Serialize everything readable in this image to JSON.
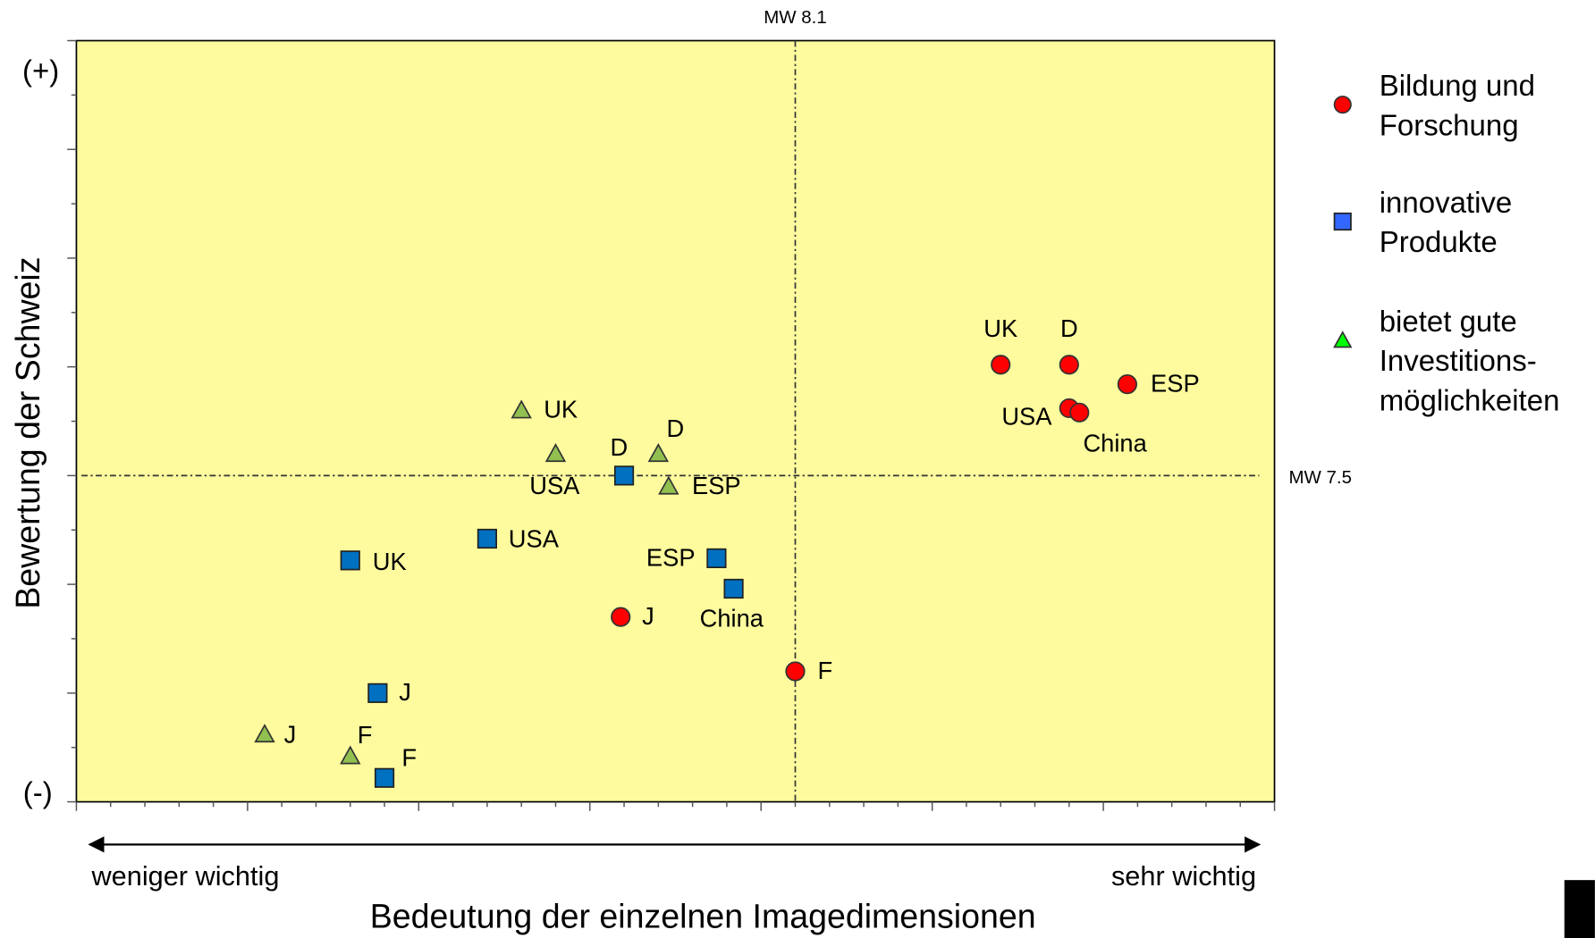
{
  "chart_data": {
    "type": "scatter",
    "xlabel": "Bedeutung der einzelnen Imagedimensionen",
    "ylabel": "Bewertung der Schweiz",
    "y_top_label": "(+)",
    "y_bottom_label": "(-)",
    "x_left_label": "weniger wichtig",
    "x_right_label": "sehr wichtig",
    "xlim": [
      6.0,
      9.5
    ],
    "ylim": [
      6.0,
      9.5
    ],
    "xticks": [
      6.0,
      6.1,
      6.2,
      6.3,
      6.4,
      6.5,
      6.6,
      6.7,
      6.8,
      6.9,
      7.0,
      7.1,
      7.2,
      7.3,
      7.4,
      7.5,
      7.6,
      7.7,
      7.8,
      7.9,
      8.0,
      8.1,
      8.2,
      8.3,
      8.4,
      8.5,
      8.6,
      8.7,
      8.8,
      8.9,
      9.0,
      9.1,
      9.2,
      9.3,
      9.4,
      9.5
    ],
    "yticks": [
      6.0,
      6.25,
      6.5,
      6.75,
      7.0,
      7.25,
      7.5,
      7.75,
      8.0,
      8.25,
      8.5,
      8.75,
      9.0,
      9.25,
      9.5
    ],
    "reference_lines": [
      {
        "axis": "x",
        "value": 8.1,
        "label": "MW 8.1"
      },
      {
        "axis": "y",
        "value": 7.5,
        "label": "MW 7.5"
      }
    ],
    "background": "#fdfb9e",
    "series": [
      {
        "name": "Bildung und Forschung",
        "color": "#ff0000",
        "marker": "circle",
        "labels": [
          "UK",
          "D",
          "ESP",
          "USA",
          "China",
          "J",
          "F"
        ],
        "x": [
          8.7,
          8.9,
          9.07,
          8.9,
          8.93,
          7.59,
          8.1
        ],
        "values": [
          8.01,
          8.01,
          7.92,
          7.81,
          7.79,
          6.85,
          6.6
        ]
      },
      {
        "name": "innovative Produkte",
        "color": "#0070c0",
        "marker": "square",
        "labels": [
          "D",
          "USA",
          "UK",
          "ESP",
          "China",
          "J",
          "F"
        ],
        "x": [
          7.6,
          7.2,
          6.8,
          7.87,
          7.92,
          6.88,
          6.9
        ],
        "values": [
          7.5,
          7.21,
          7.11,
          7.12,
          6.98,
          6.5,
          6.11
        ]
      },
      {
        "name": "bietet gute Investitions-möglichkeiten",
        "color": "#92c050",
        "marker": "triangle",
        "labels": [
          "UK",
          "USA",
          "D",
          "ESP",
          "J",
          "F"
        ],
        "x": [
          7.3,
          7.4,
          7.7,
          7.73,
          6.55,
          6.8
        ],
        "values": [
          7.8,
          7.6,
          7.6,
          7.45,
          6.31,
          6.21
        ]
      }
    ]
  }
}
